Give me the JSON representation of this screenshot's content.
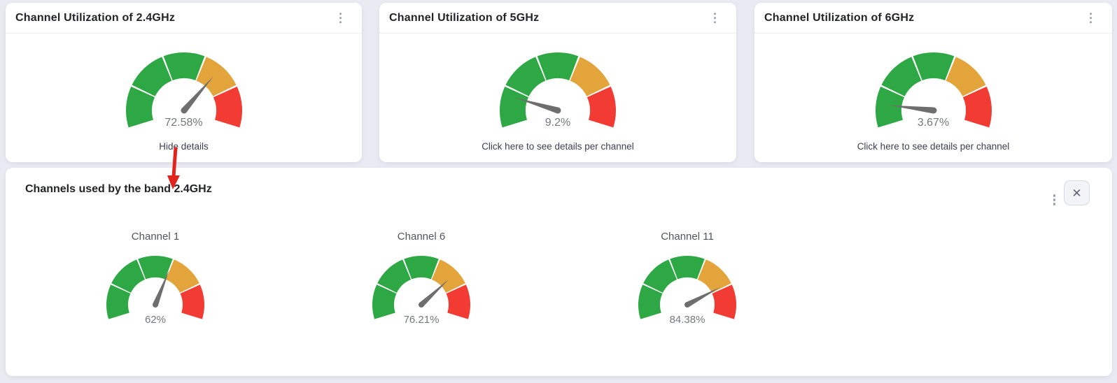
{
  "colors": {
    "background": "#e9eaf2",
    "card_bg": "#ffffff",
    "gauge_green": "#2ea844",
    "gauge_orange": "#e3a43c",
    "gauge_red": "#f13b33",
    "needle_gray": "#6e6e6e",
    "arrow_red": "#e3241e"
  },
  "icons": {
    "card_menu": "kebab-menu-icon",
    "panel_menu": "kebab-menu-icon",
    "close_glyph": "✕"
  },
  "cards": [
    {
      "title": "Channel Utilization of 2.4GHz",
      "value": 72.58,
      "value_label": "72.58%",
      "link_label": "Hide details"
    },
    {
      "title": "Channel Utilization of 5GHz",
      "value": 9.2,
      "value_label": "9.2%",
      "link_label": "Click here to see details per channel"
    },
    {
      "title": "Channel Utilization of 6GHz",
      "value": 3.67,
      "value_label": "3.67%",
      "link_label": "Click here to see details per channel"
    }
  ],
  "details_panel": {
    "title": "Channels used by the band 2.4GHz",
    "channels": [
      {
        "label": "Channel 1",
        "value": 62,
        "value_label": "62%"
      },
      {
        "label": "Channel 6",
        "value": 76.21,
        "value_label": "76.21%"
      },
      {
        "label": "Channel 11",
        "value": 84.38,
        "value_label": "84.38%"
      }
    ]
  },
  "chart_data": [
    {
      "type": "gauge",
      "title": "Channel Utilization of 2.4GHz",
      "value": 72.58,
      "unit": "%",
      "min": 0,
      "max": 100,
      "zones": [
        {
          "from": 0,
          "to": 60,
          "color": "#2ea844"
        },
        {
          "from": 60,
          "to": 80,
          "color": "#e3a43c"
        },
        {
          "from": 80,
          "to": 100,
          "color": "#f13b33"
        }
      ],
      "segment_boundaries": [
        0,
        20,
        40,
        60,
        80,
        100
      ]
    },
    {
      "type": "gauge",
      "title": "Channel Utilization of 5GHz",
      "value": 9.2,
      "unit": "%",
      "min": 0,
      "max": 100,
      "zones": [
        {
          "from": 0,
          "to": 60,
          "color": "#2ea844"
        },
        {
          "from": 60,
          "to": 80,
          "color": "#e3a43c"
        },
        {
          "from": 80,
          "to": 100,
          "color": "#f13b33"
        }
      ],
      "segment_boundaries": [
        0,
        20,
        40,
        60,
        80,
        100
      ]
    },
    {
      "type": "gauge",
      "title": "Channel Utilization of 6GHz",
      "value": 3.67,
      "unit": "%",
      "min": 0,
      "max": 100,
      "zones": [
        {
          "from": 0,
          "to": 60,
          "color": "#2ea844"
        },
        {
          "from": 60,
          "to": 80,
          "color": "#e3a43c"
        },
        {
          "from": 80,
          "to": 100,
          "color": "#f13b33"
        }
      ],
      "segment_boundaries": [
        0,
        20,
        40,
        60,
        80,
        100
      ]
    },
    {
      "type": "gauge",
      "title": "Channel 1",
      "value": 62,
      "unit": "%",
      "min": 0,
      "max": 100,
      "zones": [
        {
          "from": 0,
          "to": 60,
          "color": "#2ea844"
        },
        {
          "from": 60,
          "to": 80,
          "color": "#e3a43c"
        },
        {
          "from": 80,
          "to": 100,
          "color": "#f13b33"
        }
      ],
      "segment_boundaries": [
        0,
        20,
        40,
        60,
        80,
        100
      ]
    },
    {
      "type": "gauge",
      "title": "Channel 6",
      "value": 76.21,
      "unit": "%",
      "min": 0,
      "max": 100,
      "zones": [
        {
          "from": 0,
          "to": 60,
          "color": "#2ea844"
        },
        {
          "from": 60,
          "to": 80,
          "color": "#e3a43c"
        },
        {
          "from": 80,
          "to": 100,
          "color": "#f13b33"
        }
      ],
      "segment_boundaries": [
        0,
        20,
        40,
        60,
        80,
        100
      ]
    },
    {
      "type": "gauge",
      "title": "Channel 11",
      "value": 84.38,
      "unit": "%",
      "min": 0,
      "max": 100,
      "zones": [
        {
          "from": 0,
          "to": 60,
          "color": "#2ea844"
        },
        {
          "from": 60,
          "to": 80,
          "color": "#e3a43c"
        },
        {
          "from": 80,
          "to": 100,
          "color": "#f13b33"
        }
      ],
      "segment_boundaries": [
        0,
        20,
        40,
        60,
        80,
        100
      ]
    }
  ]
}
